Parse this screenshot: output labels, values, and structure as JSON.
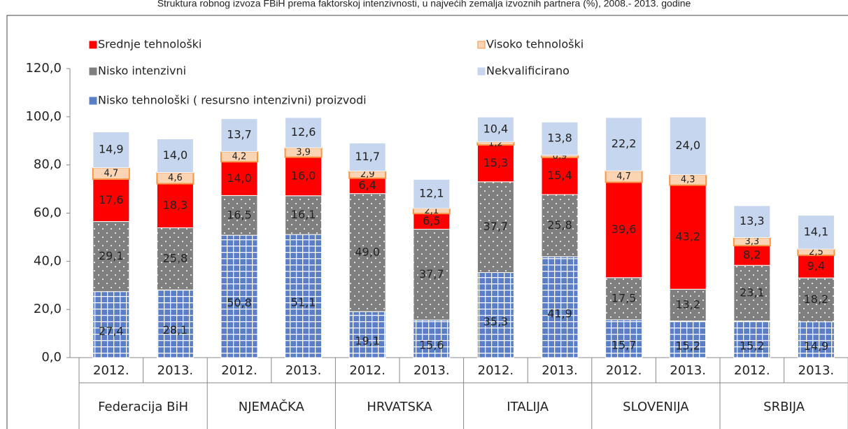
{
  "chart_data": {
    "type": "stacked_bar",
    "title": "Struktura robnog izvoza FBiH prema faktorskoj intenzivnosti, u najvećih zemalja izvoznih partnera (%), 2008.- 2013. godine",
    "categories": [
      "2012.",
      "2013.",
      "2012.",
      "2013.",
      "2012.",
      "2013.",
      "2012.",
      "2013.",
      "2012.",
      "2013.",
      "2012.",
      "2013."
    ],
    "groups": [
      "Federacija BiH",
      "NJEMAČKA",
      "HRVATSKA",
      "ITALIJA",
      "SLOVENIJA",
      "SRBIJA"
    ],
    "series": [
      {
        "name": "Nisko tehnološki ( resursno intenzivni) proizvodi",
        "color": "#5b7fc7",
        "values": [
          27.4,
          28.1,
          50.8,
          51.1,
          19.1,
          15.6,
          35.3,
          41.9,
          15.7,
          15.2,
          15.2,
          14.9
        ],
        "value_labels": [
          "27,4",
          "28,1",
          "50,8",
          "51,1",
          "19,1",
          "15,6",
          "35,3",
          "41,9",
          "15,7",
          "15,2",
          "15,2",
          "14,9"
        ]
      },
      {
        "name": "Nisko intenzivni",
        "color": "#7f7f7f",
        "values": [
          29.1,
          25.8,
          16.5,
          16.1,
          49.0,
          37.7,
          37.7,
          25.8,
          17.5,
          13.2,
          23.1,
          18.2
        ],
        "value_labels": [
          "29,1",
          "25,8",
          "16,5",
          "16,1",
          "49,0",
          "37,7",
          "37,7",
          "25,8",
          "17,5",
          "13,2",
          "23,1",
          "18,2"
        ]
      },
      {
        "name": "Srednje tehnološki",
        "color": "#ff0000",
        "values": [
          17.6,
          18.3,
          14.0,
          16.0,
          6.4,
          6.5,
          15.3,
          15.4,
          39.6,
          43.2,
          8.2,
          9.4
        ],
        "value_labels": [
          "17,6",
          "18,3",
          "14,0",
          "16,0",
          "6,4",
          "6,5",
          "15,3",
          "15,4",
          "39,6",
          "43,2",
          "8,2",
          "9,4"
        ]
      },
      {
        "name": "Visoko tehnološki",
        "color": "#fbd4b4",
        "values": [
          4.7,
          4.6,
          4.2,
          3.9,
          2.9,
          2.1,
          1.2,
          0.9,
          4.7,
          4.3,
          3.3,
          2.5
        ],
        "value_labels": [
          "4,7",
          "4,6",
          "4,2",
          "3,9",
          "2,9",
          "2,1",
          "1,2",
          "0,9",
          "4,7",
          "4,3",
          "3,3",
          "2,5"
        ]
      },
      {
        "name": "Nekvalificirano",
        "color": "#c6d6ee",
        "values": [
          14.9,
          14.0,
          13.7,
          12.6,
          11.7,
          12.1,
          10.4,
          13.8,
          22.2,
          24.0,
          13.3,
          14.1
        ],
        "value_labels": [
          "14,9",
          "14,0",
          "13,7",
          "12,6",
          "11,7",
          "12,1",
          "10,4",
          "13,8",
          "22,2",
          "24,0",
          "13,3",
          "14,1"
        ]
      }
    ],
    "ylim": [
      0,
      120
    ],
    "yticks": [
      {
        "value": 0,
        "label": "0,0"
      },
      {
        "value": 20,
        "label": "20,0"
      },
      {
        "value": 40,
        "label": "40,0"
      },
      {
        "value": 60,
        "label": "60,0"
      },
      {
        "value": 80,
        "label": "80,0"
      },
      {
        "value": 100,
        "label": "100,0"
      },
      {
        "value": 120,
        "label": "120,0"
      }
    ],
    "legend": "top-left"
  }
}
